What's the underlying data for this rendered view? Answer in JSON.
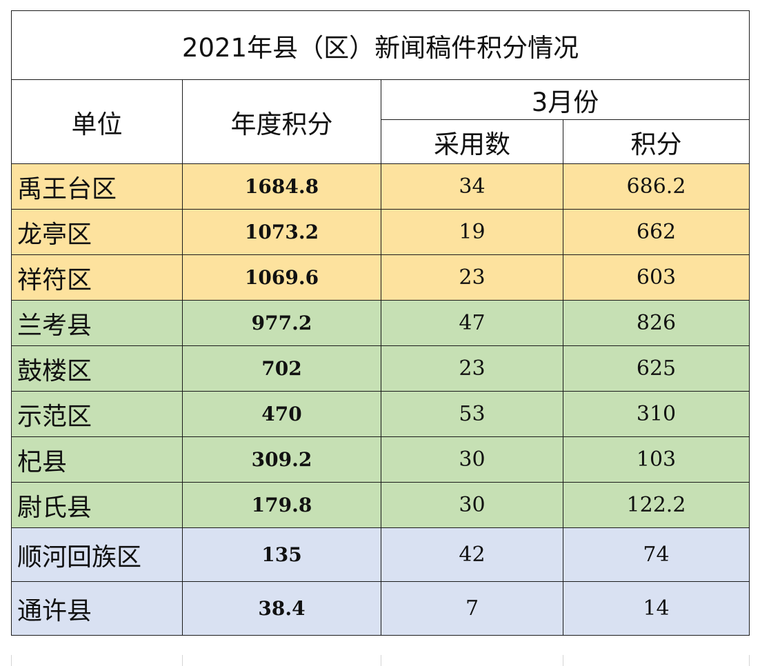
{
  "title": "2021年县（区）新闻稿件积分情况",
  "headers": {
    "unit": "单位",
    "annual_score": "年度积分",
    "month_group": "3月份",
    "adopted": "采用数",
    "score": "积分"
  },
  "rows": [
    {
      "unit": "禹王台区",
      "annual": "1684.8",
      "adopted": "34",
      "score": "686.2",
      "group": "orange"
    },
    {
      "unit": "龙亭区",
      "annual": "1073.2",
      "adopted": "19",
      "score": "662",
      "group": "orange"
    },
    {
      "unit": "祥符区",
      "annual": "1069.6",
      "adopted": "23",
      "score": "603",
      "group": "orange"
    },
    {
      "unit": "兰考县",
      "annual": "977.2",
      "adopted": "47",
      "score": "826",
      "group": "green"
    },
    {
      "unit": "鼓楼区",
      "annual": "702",
      "adopted": "23",
      "score": "625",
      "group": "green"
    },
    {
      "unit": "示范区",
      "annual": "470",
      "adopted": "53",
      "score": "310",
      "group": "green"
    },
    {
      "unit": "杞县",
      "annual": "309.2",
      "adopted": "30",
      "score": "103",
      "group": "green"
    },
    {
      "unit": "尉氏县",
      "annual": "179.8",
      "adopted": "30",
      "score": "122.2",
      "group": "green"
    },
    {
      "unit": "顺河回族区",
      "annual": "135",
      "adopted": "42",
      "score": "74",
      "group": "blue"
    },
    {
      "unit": "通许县",
      "annual": "38.4",
      "adopted": "7",
      "score": "14",
      "group": "blue"
    }
  ],
  "colors": {
    "orange": "#fde29e",
    "green": "#c6e0b4",
    "blue": "#d9e1f2",
    "border": "#1a1a1a"
  }
}
